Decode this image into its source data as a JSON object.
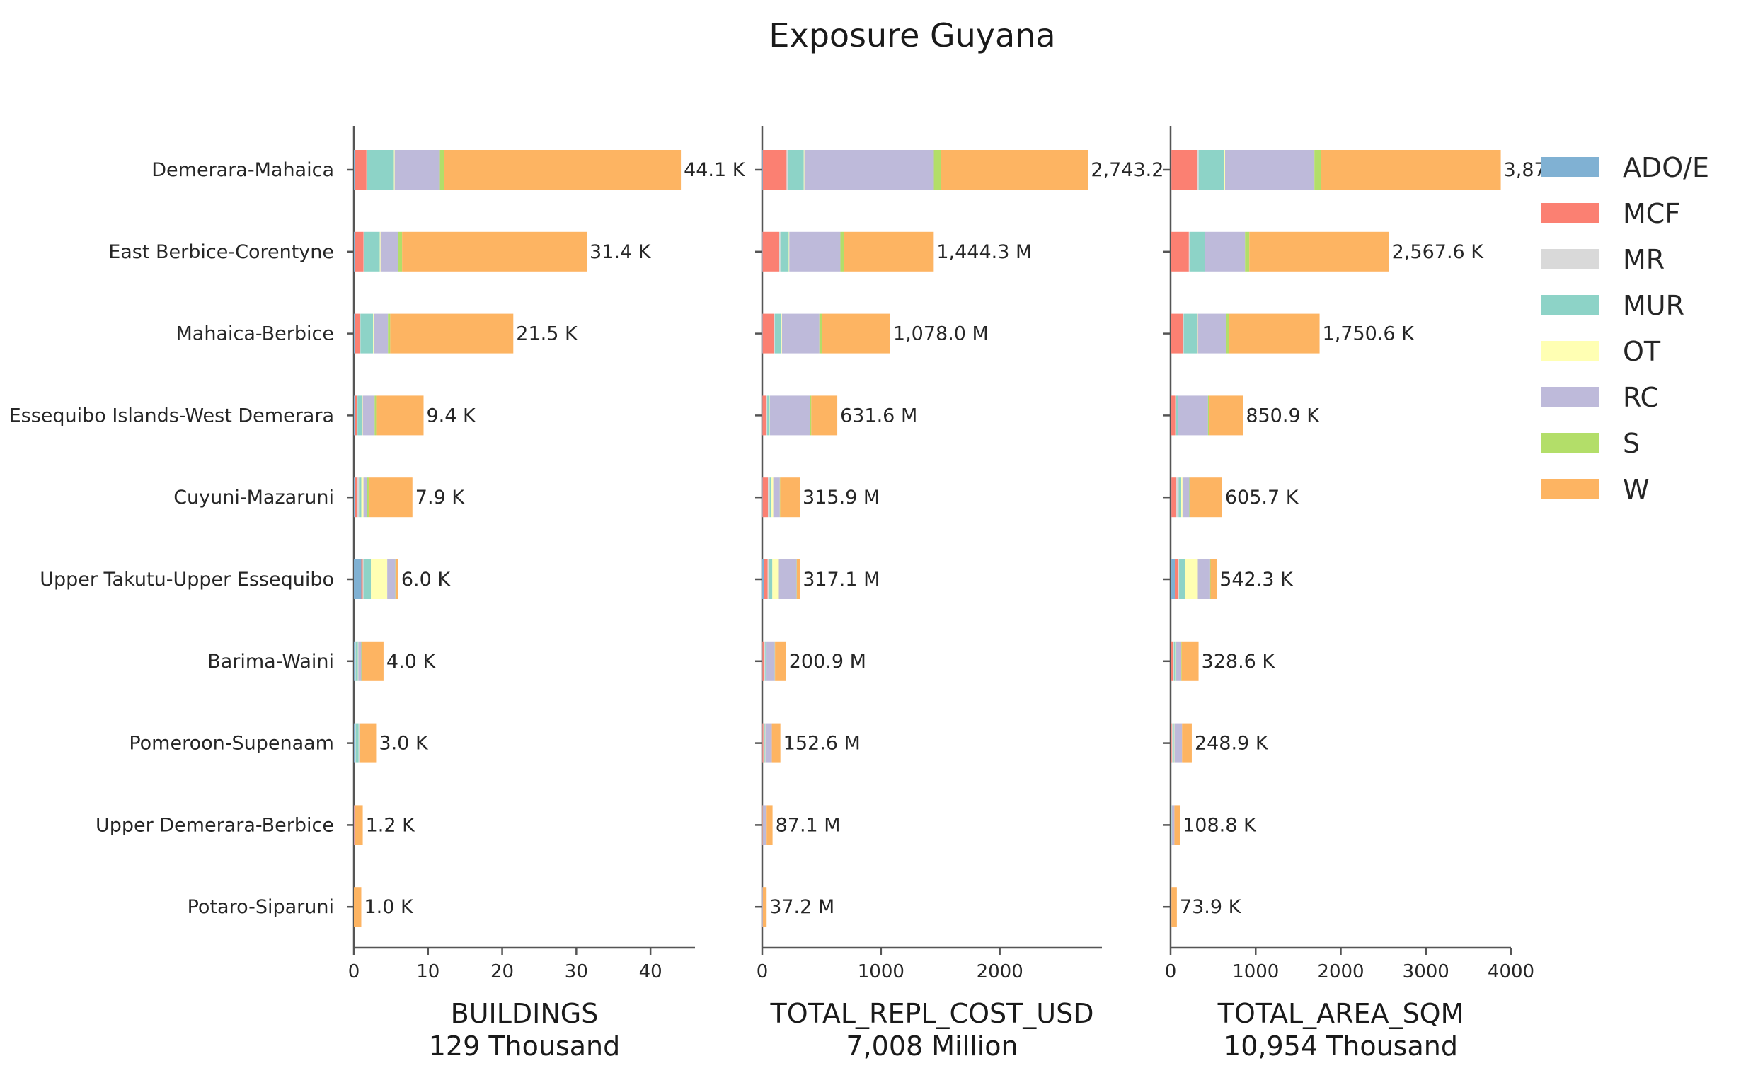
{
  "title": "Exposure Guyana",
  "legend": {
    "entries": [
      {
        "name": "ADO/E",
        "color": "#80b1d3"
      },
      {
        "name": "MCF",
        "color": "#fb8072"
      },
      {
        "name": "MR",
        "color": "#d9d9d9"
      },
      {
        "name": "MUR",
        "color": "#8dd3c7"
      },
      {
        "name": "OT",
        "color": "#ffffb3"
      },
      {
        "name": "RC",
        "color": "#bebada"
      },
      {
        "name": "S",
        "color": "#b3de69"
      },
      {
        "name": "W",
        "color": "#fdb462"
      }
    ]
  },
  "chart_data": [
    {
      "type": "bar",
      "orientation": "horizontal",
      "stacked": true,
      "xlabel": "BUILDINGS",
      "total_label": "129 Thousand",
      "xlim": [
        0,
        46
      ],
      "xticks": [
        0,
        10,
        20,
        30,
        40
      ],
      "categories": [
        "Demerara-Mahaica",
        "East Berbice-Corentyne",
        "Mahaica-Berbice",
        "Essequibo Islands-West Demerara",
        "Cuyuni-Mazaruni",
        "Upper Takutu-Upper Essequibo",
        "Barima-Waini",
        "Pomeroon-Supenaam",
        "Upper Demerara-Berbice",
        "Potaro-Siparuni"
      ],
      "totals_text": [
        "44.1 K",
        "31.4 K",
        "21.5 K",
        "9.4 K",
        "7.9 K",
        "6.0 K",
        "4.0 K",
        "3.0 K",
        "1.2 K",
        "1.0 K"
      ],
      "series": [
        {
          "name": "ADO/E",
          "values": [
            0.1,
            0.1,
            0.1,
            0.1,
            0.1,
            1.0,
            0.1,
            0.1,
            0.0,
            0.0
          ]
        },
        {
          "name": "MCF",
          "values": [
            1.6,
            1.2,
            0.7,
            0.3,
            0.4,
            0.2,
            0.1,
            0.1,
            0.05,
            0.0
          ]
        },
        {
          "name": "MR",
          "values": [
            0.1,
            0.1,
            0.1,
            0.1,
            0.2,
            0.1,
            0.05,
            0.05,
            0.0,
            0.0
          ]
        },
        {
          "name": "MUR",
          "values": [
            3.6,
            2.1,
            1.7,
            0.6,
            0.3,
            1.0,
            0.3,
            0.4,
            0.0,
            0.0
          ]
        },
        {
          "name": "OT",
          "values": [
            0.1,
            0.1,
            0.1,
            0.1,
            0.3,
            2.2,
            0.05,
            0.05,
            0.0,
            0.0
          ]
        },
        {
          "name": "RC",
          "values": [
            6.1,
            2.4,
            1.9,
            1.6,
            0.5,
            1.1,
            0.4,
            0.1,
            0.05,
            0.0
          ]
        },
        {
          "name": "S",
          "values": [
            0.6,
            0.5,
            0.3,
            0.2,
            0.2,
            0.1,
            0.1,
            0.0,
            0.0,
            0.0
          ]
        },
        {
          "name": "W",
          "values": [
            31.9,
            24.9,
            16.6,
            6.4,
            5.9,
            0.3,
            2.9,
            2.2,
            1.1,
            1.0
          ]
        }
      ]
    },
    {
      "type": "bar",
      "orientation": "horizontal",
      "stacked": true,
      "xlabel": "TOTAL_REPL_COST_USD",
      "total_label": "7,008 Million",
      "xlim": [
        0,
        2860
      ],
      "xticks": [
        0,
        1000,
        2000
      ],
      "categories": [
        "Demerara-Mahaica",
        "East Berbice-Corentyne",
        "Mahaica-Berbice",
        "Essequibo Islands-West Demerara",
        "Cuyuni-Mazaruni",
        "Upper Takutu-Upper Essequibo",
        "Barima-Waini",
        "Pomeroon-Supenaam",
        "Upper Demerara-Berbice",
        "Potaro-Siparuni"
      ],
      "totals_text": [
        "2,743.2 M",
        "1,444.3 M",
        "1,078.0 M",
        "631.6 M",
        "315.9 M",
        "317.1 M",
        "200.9 M",
        "152.6 M",
        "87.1 M",
        "37.2 M"
      ],
      "series": [
        {
          "name": "ADO/E",
          "values": [
            5,
            3,
            3,
            2,
            3,
            15,
            2,
            2,
            0,
            0
          ]
        },
        {
          "name": "MCF",
          "values": [
            200,
            140,
            95,
            35,
            45,
            30,
            15,
            8,
            3,
            0
          ]
        },
        {
          "name": "MR",
          "values": [
            15,
            10,
            8,
            5,
            15,
            10,
            8,
            5,
            2,
            0
          ]
        },
        {
          "name": "MUR",
          "values": [
            130,
            70,
            55,
            20,
            15,
            30,
            8,
            8,
            2,
            0
          ]
        },
        {
          "name": "OT",
          "values": [
            5,
            5,
            5,
            3,
            15,
            55,
            3,
            3,
            0,
            0
          ]
        },
        {
          "name": "RC",
          "values": [
            1090,
            430,
            315,
            340,
            55,
            150,
            70,
            55,
            30,
            5
          ]
        },
        {
          "name": "S",
          "values": [
            58,
            30,
            22,
            8,
            3,
            2,
            2,
            0,
            0,
            0
          ]
        },
        {
          "name": "W",
          "values": [
            1240,
            756,
            575,
            219,
            165,
            25,
            93,
            72,
            50,
            32
          ]
        }
      ]
    },
    {
      "type": "bar",
      "orientation": "horizontal",
      "stacked": true,
      "xlabel": "TOTAL_AREA_SQM",
      "total_label": "10,954 Thousand",
      "xlim": [
        0,
        4000
      ],
      "xticks": [
        0,
        1000,
        2000,
        3000,
        4000
      ],
      "categories": [
        "Demerara-Mahaica",
        "East Berbice-Corentyne",
        "Mahaica-Berbice",
        "Essequibo Islands-West Demerara",
        "Cuyuni-Mazaruni",
        "Upper Takutu-Upper Essequibo",
        "Barima-Waini",
        "Pomeroon-Supenaam",
        "Upper Demerara-Berbice",
        "Potaro-Siparuni"
      ],
      "totals_text": [
        "3,87",
        "2,567.6 K",
        "1,750.6 K",
        "850.9 K",
        "605.7 K",
        "542.3 K",
        "328.6 K",
        "248.9 K",
        "108.8 K",
        "73.9 K"
      ],
      "series": [
        {
          "name": "ADO/E",
          "values": [
            10,
            5,
            5,
            5,
            10,
            50,
            5,
            5,
            0,
            0
          ]
        },
        {
          "name": "MCF",
          "values": [
            300,
            210,
            140,
            50,
            55,
            35,
            20,
            10,
            5,
            0
          ]
        },
        {
          "name": "MR",
          "values": [
            20,
            10,
            10,
            10,
            30,
            15,
            15,
            10,
            5,
            0
          ]
        },
        {
          "name": "MUR",
          "values": [
            300,
            175,
            160,
            20,
            30,
            70,
            15,
            15,
            5,
            0
          ]
        },
        {
          "name": "OT",
          "values": [
            10,
            5,
            5,
            5,
            15,
            150,
            5,
            5,
            0,
            0
          ]
        },
        {
          "name": "RC",
          "values": [
            1050,
            470,
            330,
            350,
            80,
            145,
            65,
            90,
            30,
            10
          ]
        },
        {
          "name": "S",
          "values": [
            80,
            50,
            35,
            15,
            5,
            5,
            5,
            0,
            0,
            0
          ]
        },
        {
          "name": "W",
          "values": [
            2110,
            1642,
            1066,
            396,
            381,
            72,
            199,
            114,
            64,
            64
          ]
        }
      ]
    }
  ]
}
